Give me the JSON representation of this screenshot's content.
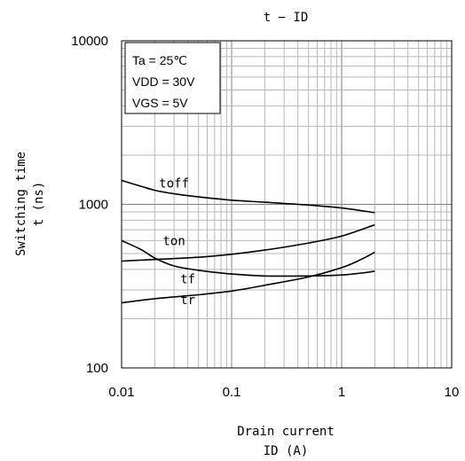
{
  "chart_data": {
    "type": "line",
    "title": "t − ID",
    "xlabel": [
      "Drain current",
      "ID (A)"
    ],
    "ylabel": [
      "Switching time",
      "t (ns)"
    ],
    "x_scale": "log",
    "y_scale": "log",
    "xlim": [
      0.01,
      10
    ],
    "ylim": [
      100,
      10000
    ],
    "x_ticks": [
      {
        "value": 0.01,
        "label": "0.01"
      },
      {
        "value": 0.1,
        "label": "0.1"
      },
      {
        "value": 1,
        "label": "1"
      },
      {
        "value": 10,
        "label": "10"
      }
    ],
    "y_ticks": [
      {
        "value": 100,
        "label": "100"
      },
      {
        "value": 1000,
        "label": "1000"
      },
      {
        "value": 10000,
        "label": "10000"
      }
    ],
    "grid": true,
    "conditions": [
      "Ta = 25℃",
      "VDD = 30V",
      "VGS = 5V"
    ],
    "series": [
      {
        "name": "toff",
        "label_at": [
          0.03,
          1270
        ],
        "x": [
          0.01,
          0.015,
          0.02,
          0.03,
          0.05,
          0.1,
          0.2,
          0.5,
          1,
          2
        ],
        "y": [
          1400,
          1290,
          1220,
          1160,
          1110,
          1060,
          1030,
          990,
          950,
          890
        ]
      },
      {
        "name": "ton",
        "label_at": [
          0.03,
          562
        ],
        "x": [
          0.01,
          0.02,
          0.05,
          0.1,
          0.2,
          0.5,
          1,
          2
        ],
        "y": [
          450,
          460,
          475,
          495,
          525,
          580,
          640,
          750
        ]
      },
      {
        "name": "tf",
        "label_at": [
          0.04,
          330
        ],
        "x": [
          0.01,
          0.015,
          0.02,
          0.03,
          0.05,
          0.1,
          0.2,
          0.5,
          1,
          1.5,
          2
        ],
        "y": [
          600,
          530,
          470,
          420,
          395,
          375,
          365,
          365,
          370,
          380,
          390
        ]
      },
      {
        "name": "tr",
        "label_at": [
          0.04,
          245
        ],
        "x": [
          0.01,
          0.02,
          0.05,
          0.1,
          0.2,
          0.5,
          1,
          1.5,
          2
        ],
        "y": [
          250,
          265,
          280,
          295,
          320,
          360,
          410,
          460,
          510
        ]
      }
    ]
  }
}
